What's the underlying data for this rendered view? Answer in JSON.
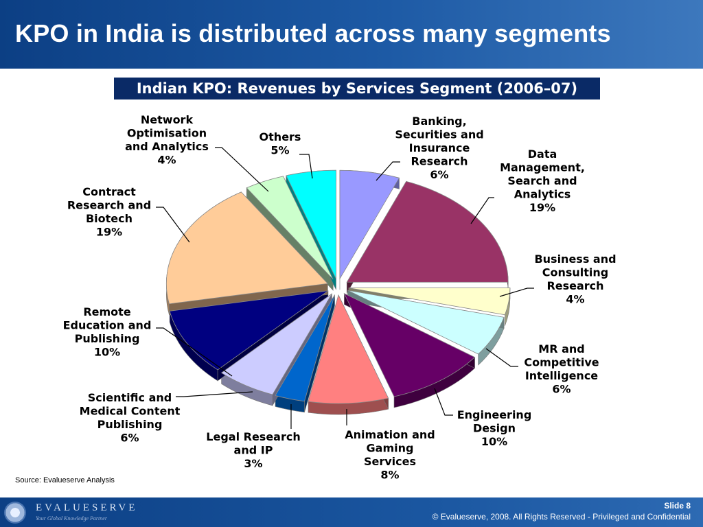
{
  "header": {
    "title": "KPO in India is distributed across many segments"
  },
  "chart_data": {
    "type": "pie",
    "title": "Indian KPO: Revenues by Services Segment (2006–07)",
    "unit": "%",
    "slices": [
      {
        "lines": [
          "Banking,",
          "Securities and",
          "Insurance",
          "Research"
        ],
        "value": 6,
        "color": "#9999ff"
      },
      {
        "lines": [
          "Data",
          "Management,",
          "Search and",
          "Analytics"
        ],
        "value": 19,
        "color": "#993366"
      },
      {
        "lines": [
          "Business and",
          "Consulting",
          "Research"
        ],
        "value": 4,
        "color": "#ffffcc"
      },
      {
        "lines": [
          "MR and",
          "Competitive",
          "Intelligence"
        ],
        "value": 6,
        "color": "#ccffff"
      },
      {
        "lines": [
          "Engineering",
          "Design"
        ],
        "value": 10,
        "color": "#660066"
      },
      {
        "lines": [
          "Animation and",
          "Gaming",
          "Services"
        ],
        "value": 8,
        "color": "#ff8080"
      },
      {
        "lines": [
          "Legal Research",
          "and IP"
        ],
        "value": 3,
        "color": "#0066cc"
      },
      {
        "lines": [
          "Scientific and",
          "Medical Content",
          "Publishing"
        ],
        "value": 6,
        "color": "#ccccff"
      },
      {
        "lines": [
          "Remote",
          "Education and",
          "Publishing"
        ],
        "value": 10,
        "color": "#000080"
      },
      {
        "lines": [
          "Contract",
          "Research and",
          "Biotech"
        ],
        "value": 19,
        "color": "#ffcc99"
      },
      {
        "lines": [
          "Network",
          "Optimisation",
          "and Analytics"
        ],
        "value": 4,
        "color": "#ccffcc"
      },
      {
        "lines": [
          "Others"
        ],
        "value": 5,
        "color": "#00ffff"
      }
    ]
  },
  "source": "Source: Evalueserve Analysis",
  "footer": {
    "logo_text": "EVALUESERVE",
    "logo_tagline": "Your Global Knowledge Partner",
    "slide": "Slide 8",
    "copyright": "© Evalueserve, 2008. All Rights Reserved - Privileged and Confidential"
  }
}
